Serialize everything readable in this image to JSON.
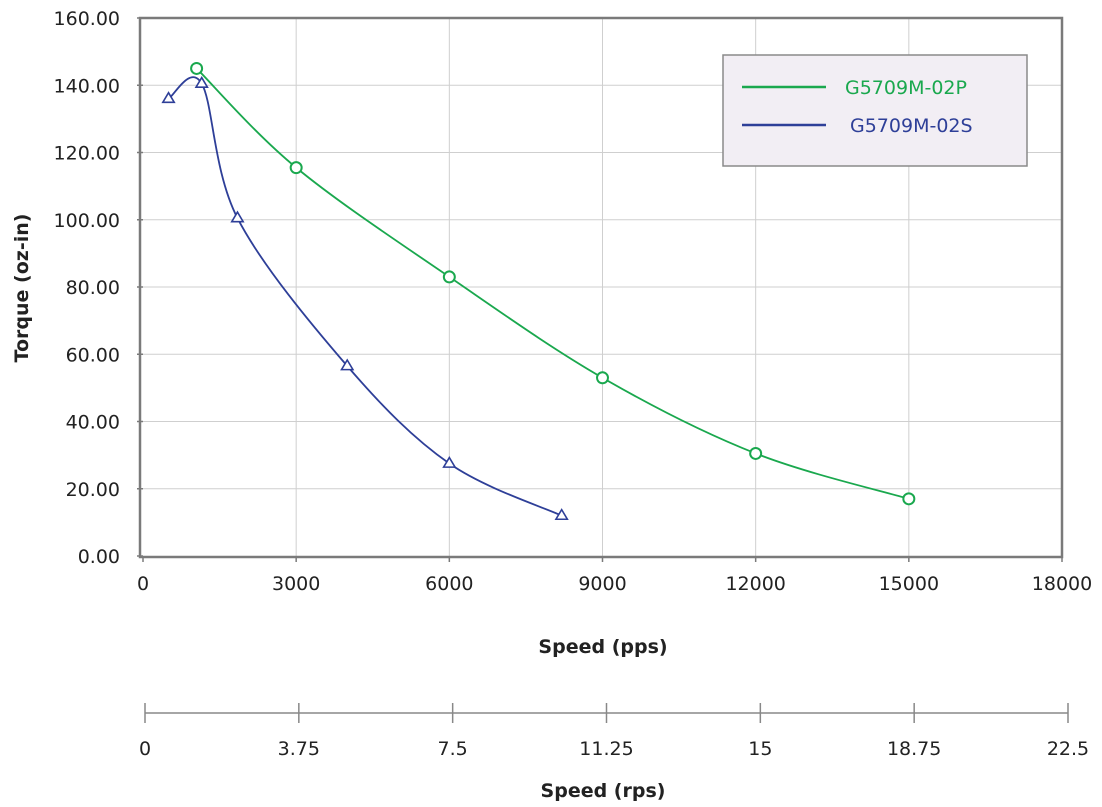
{
  "chart_data": {
    "type": "line",
    "title": "",
    "xlabel": "Speed (pps)",
    "ylabel": "Torque (oz-in)",
    "xlim": [
      0,
      18000
    ],
    "ylim": [
      0,
      160
    ],
    "x_ticks": [
      "0",
      "3000",
      "6000",
      "9000",
      "12000",
      "15000",
      "18000"
    ],
    "y_ticks": [
      "0.00",
      "20.00",
      "40.00",
      "60.00",
      "80.00",
      "100.00",
      "120.00",
      "140.00",
      "160.00"
    ],
    "secondary_axis": {
      "label": "Speed (rps)",
      "range": [
        0,
        22.5
      ],
      "ticks": [
        "0",
        "3.75",
        "7.5",
        "11.25",
        "15",
        "18.75",
        "22.5"
      ]
    },
    "grid": true,
    "legend_position": "top-right",
    "series": [
      {
        "name": "G5709M-02P",
        "color": "#1aa84e",
        "marker": "circle",
        "points": [
          [
            1050,
            145
          ],
          [
            3000,
            115.5
          ],
          [
            6000,
            83
          ],
          [
            9000,
            53
          ],
          [
            12000,
            30.5
          ],
          [
            15000,
            17
          ]
        ]
      },
      {
        "name": "G5709M-02S",
        "color": "#2e3f98",
        "marker": "triangle",
        "points": [
          [
            500,
            136
          ],
          [
            1150,
            140.5
          ],
          [
            1850,
            100.5
          ],
          [
            4000,
            56.5
          ],
          [
            6000,
            27.5
          ],
          [
            8200,
            12
          ]
        ]
      }
    ]
  }
}
